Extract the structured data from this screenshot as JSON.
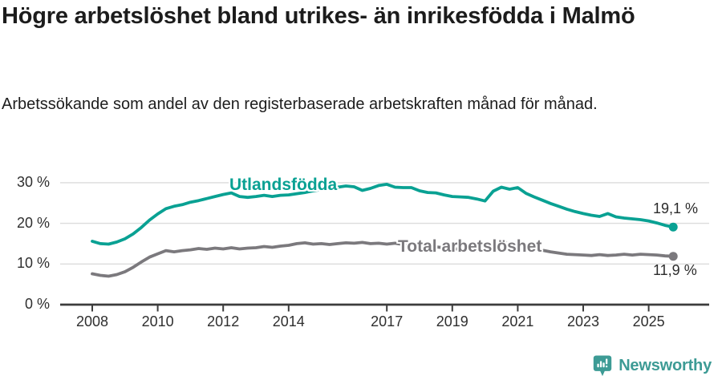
{
  "header": {
    "title": "Högre arbetslöshet bland utrikes- än inrikesfödda i Malmö",
    "subtitle": "Arbetssökande som andel av den registerbaserade arbetskraften månad för månad."
  },
  "chart_data": {
    "type": "line",
    "title": "Högre arbetslöshet bland utrikes- än inrikesfödda i Malmö",
    "subtitle": "Arbetssökande som andel av den registerbaserade arbetskraften månad för månad.",
    "x_start": 2008,
    "x_step": 0.25,
    "x_ticks": [
      2008,
      2010,
      2012,
      2014,
      2017,
      2019,
      2021,
      2023,
      2025
    ],
    "x_tick_labels": [
      "2008",
      "2010",
      "2012",
      "2014",
      "2017",
      "2019",
      "2021",
      "2023",
      "2025"
    ],
    "y_ticks": [
      0,
      10,
      20,
      30
    ],
    "y_tick_labels": [
      "0 %",
      "10 %",
      "20 %",
      "30 %"
    ],
    "ylim": [
      0,
      31
    ],
    "grid": "horizontal",
    "legend_position": "inline-labels",
    "series": [
      {
        "name": "Utlandsfödda",
        "color": "#09a193",
        "end_label": "19,1 %",
        "last_value": 19.1,
        "values": [
          15.6,
          15.0,
          14.9,
          15.4,
          16.2,
          17.4,
          19.0,
          20.8,
          22.3,
          23.6,
          24.2,
          24.6,
          25.2,
          25.6,
          26.1,
          26.6,
          27.1,
          27.5,
          26.6,
          26.4,
          26.6,
          26.9,
          26.6,
          26.9,
          27.0,
          27.3,
          27.6,
          28.0,
          28.3,
          28.6,
          28.9,
          29.2,
          29.0,
          28.1,
          28.6,
          29.3,
          29.6,
          28.9,
          28.8,
          28.8,
          28.0,
          27.6,
          27.5,
          27.0,
          26.6,
          26.5,
          26.4,
          26.0,
          25.5,
          27.9,
          28.9,
          28.4,
          28.8,
          27.4,
          26.5,
          25.7,
          24.9,
          24.2,
          23.5,
          22.9,
          22.4,
          22.0,
          21.7,
          22.4,
          21.6,
          21.3,
          21.1,
          20.9,
          20.6,
          20.1,
          19.5,
          19.1
        ]
      },
      {
        "name": "Total arbetslöshet",
        "color": "#7b797d",
        "end_label": "11,9 %",
        "last_value": 11.9,
        "values": [
          7.6,
          7.2,
          7.0,
          7.4,
          8.1,
          9.2,
          10.5,
          11.7,
          12.5,
          13.3,
          13.0,
          13.3,
          13.5,
          13.8,
          13.6,
          13.9,
          13.7,
          14.0,
          13.7,
          13.9,
          14.0,
          14.3,
          14.1,
          14.4,
          14.6,
          15.0,
          15.2,
          14.9,
          15.0,
          14.8,
          15.0,
          15.2,
          15.1,
          15.3,
          15.0,
          15.1,
          14.9,
          15.1,
          14.8,
          14.8,
          14.6,
          14.4,
          14.2,
          14.0,
          13.8,
          13.6,
          13.4,
          13.2,
          13.1,
          14.4,
          15.3,
          15.0,
          15.2,
          14.5,
          13.9,
          13.4,
          13.0,
          12.7,
          12.4,
          12.3,
          12.2,
          12.1,
          12.3,
          12.1,
          12.2,
          12.4,
          12.2,
          12.4,
          12.3,
          12.2,
          12.0,
          11.9
        ]
      }
    ]
  },
  "colors": {
    "accent_teal": "#09a193",
    "line_gray": "#7b797d",
    "axis": "#3c3c3c",
    "gridline": "#dcdcdc",
    "text": "#1c1c1c"
  },
  "footer": {
    "brand": "Newsworthy",
    "brand_color": "#3d9b95"
  }
}
